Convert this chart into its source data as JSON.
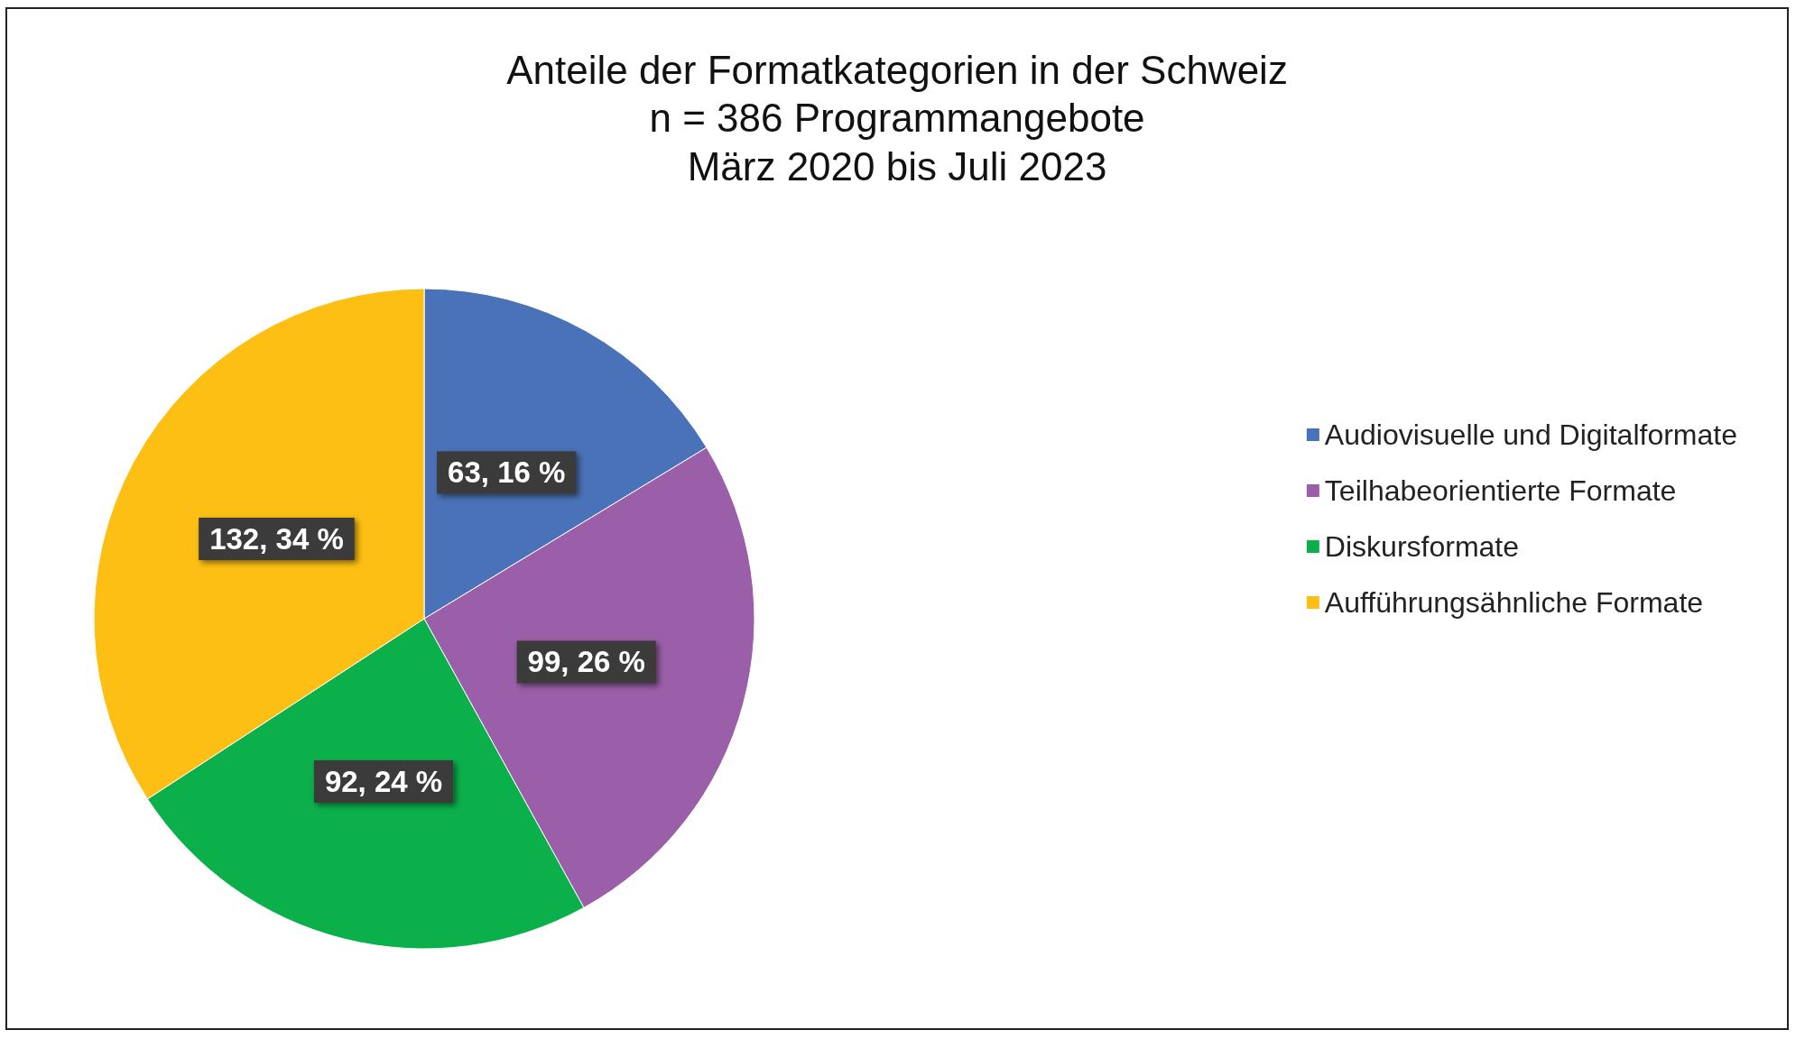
{
  "chart_data": {
    "type": "pie",
    "title": "Anteile der Formatkategorien in der Schweiz",
    "subtitle": "n = 386 Programmangebote\nMärz 2020 bis Juli 2023",
    "categories": [
      "Audiovisuelle und Digitalformate",
      "Teilhabeorientierte Formate",
      "Diskursformate",
      "Aufführungsähnliche Formate"
    ],
    "values": [
      63,
      99,
      92,
      132
    ],
    "colors": [
      "#4a72b8",
      "#9a5fa8",
      "#0bb04b",
      "#fdbf13"
    ],
    "value_labels": [
      "63, 16 %",
      "99, 26 %",
      "92, 24 %",
      "132, 34 %"
    ],
    "legend": "right"
  }
}
